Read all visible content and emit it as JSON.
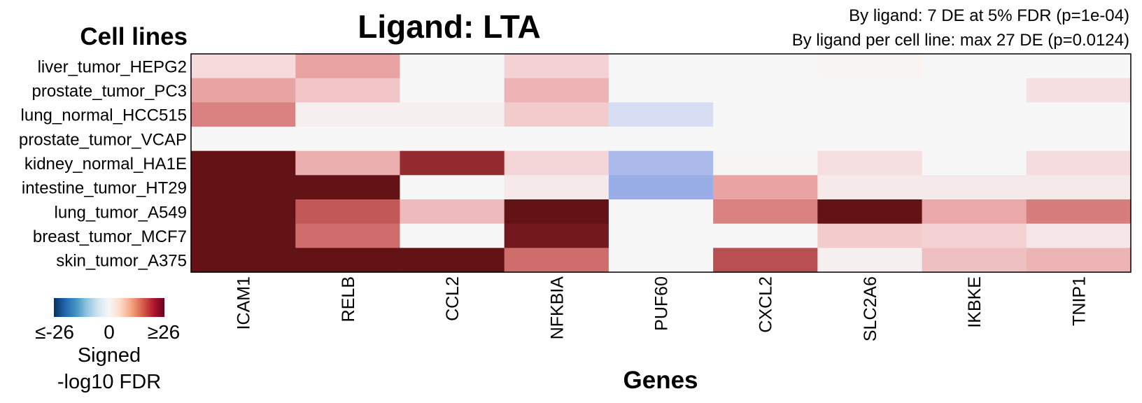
{
  "chart_data": {
    "type": "heatmap",
    "title": "Ligand: LTA",
    "subtitle_lines": [
      "By ligand: 7 DE at 5% FDR (p=1e-04)",
      "By ligand per cell line: max 27 DE (p=0.0124)"
    ],
    "ylabel": "Cell lines",
    "xlabel": "Genes",
    "x_categories": [
      "ICAM1",
      "RELB",
      "CCL2",
      "NFKBIA",
      "PUF60",
      "CXCL2",
      "SLC2A6",
      "IKBKE",
      "TNIP1"
    ],
    "y_categories": [
      "liver_tumor_HEPG2",
      "prostate_tumor_PC3",
      "lung_normal_HCC515",
      "prostate_tumor_VCAP",
      "kidney_normal_HA1E",
      "intestine_tumor_HT29",
      "lung_tumor_A549",
      "breast_tumor_MCF7",
      "skin_tumor_A375"
    ],
    "values": [
      [
        3,
        8,
        0,
        4,
        0,
        0,
        0.3,
        0,
        0
      ],
      [
        8,
        5,
        0,
        6.5,
        0,
        0,
        0,
        0,
        2.5
      ],
      [
        11,
        0.8,
        0.8,
        4.5,
        -4,
        0,
        0,
        0,
        0
      ],
      [
        0,
        0,
        0,
        0,
        0,
        0,
        0,
        0,
        0
      ],
      [
        26,
        7,
        20,
        3.5,
        -10,
        0.3,
        2.5,
        0,
        2.8
      ],
      [
        26,
        26,
        0,
        1.5,
        -12,
        8,
        1.5,
        1.5,
        1.5
      ],
      [
        26,
        15,
        6,
        26,
        0,
        11,
        26,
        7.5,
        11.5
      ],
      [
        26,
        13,
        0,
        24,
        0,
        0,
        4.5,
        4,
        1.8
      ],
      [
        26,
        26,
        26,
        13,
        0,
        16,
        0.8,
        5.5,
        6.5
      ]
    ],
    "color_range": [
      -26,
      26
    ],
    "colors": {
      "negative": "#053061",
      "neutral": "#f7f7f7",
      "positive": "#67001f"
    },
    "legend": {
      "tick_labels": [
        "≤-26",
        "0",
        "≥26"
      ],
      "title_lines": [
        "Signed",
        "-log10 FDR"
      ],
      "placement": "bottom-left"
    }
  }
}
